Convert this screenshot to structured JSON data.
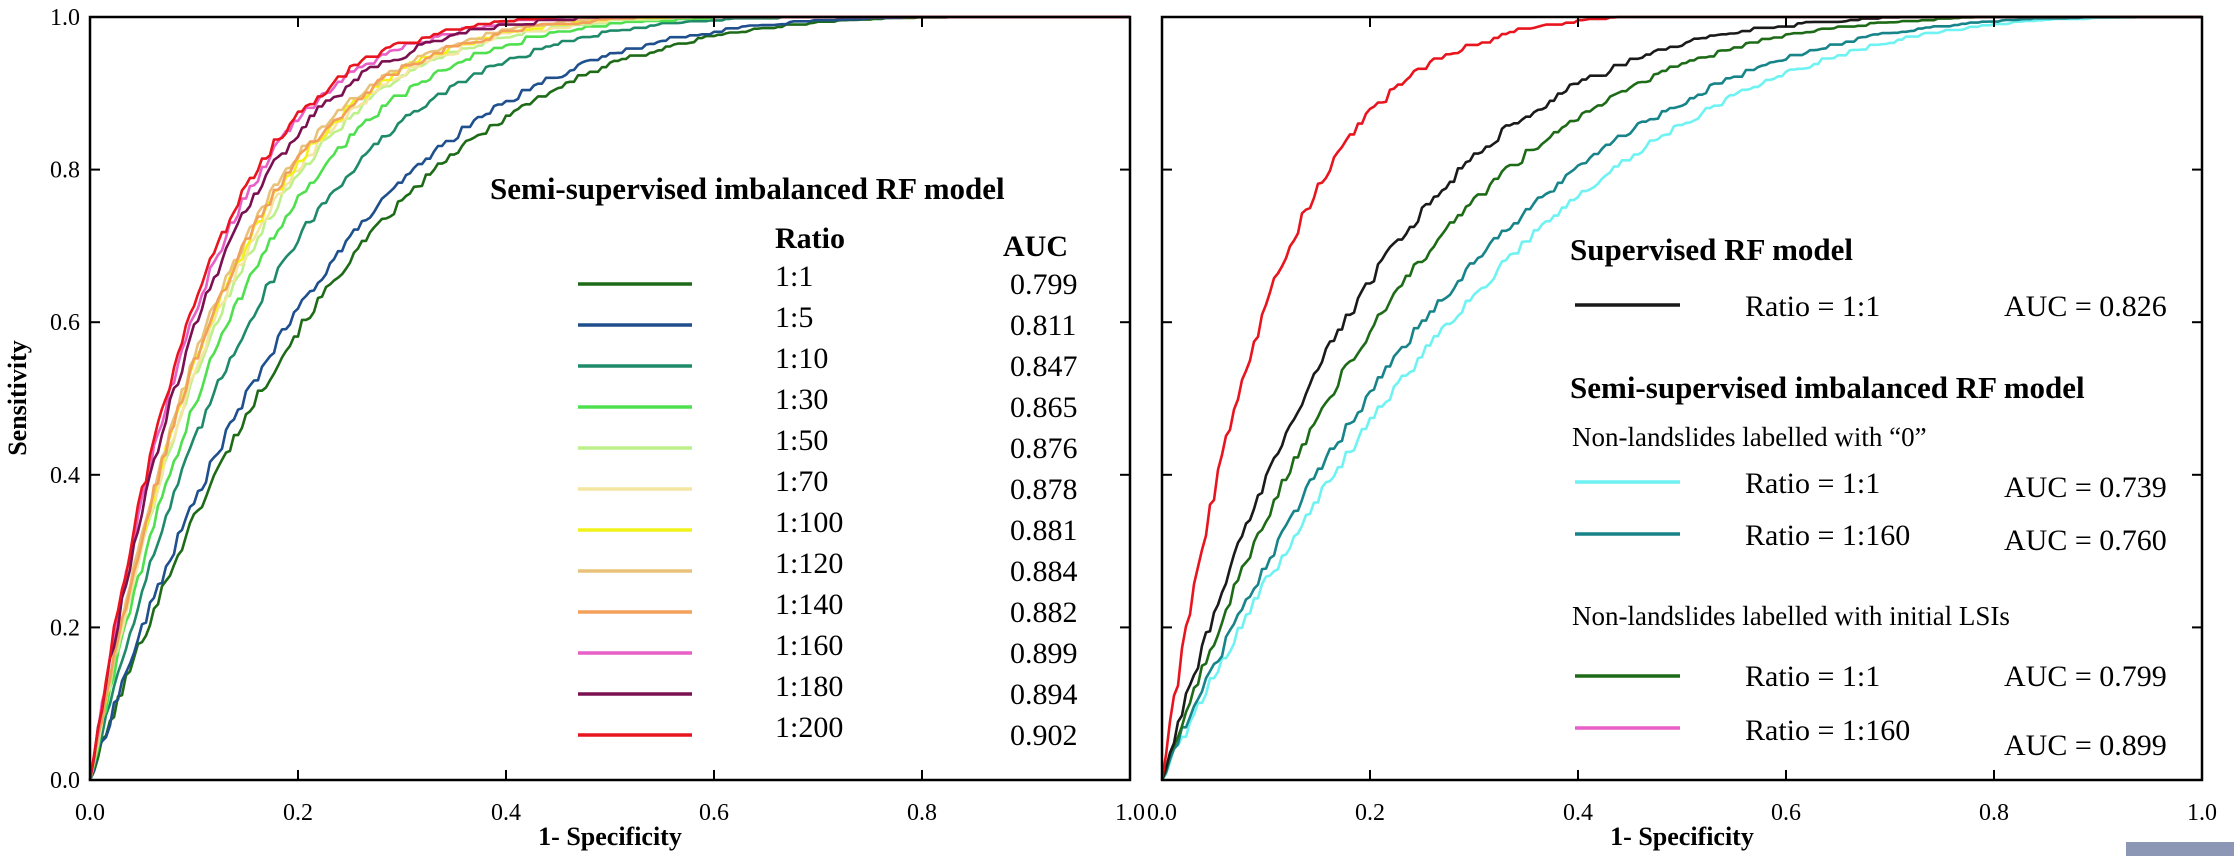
{
  "chart_data": [
    {
      "type": "line",
      "title": "",
      "xlabel": "1- Specificity",
      "ylabel": "Sensitivity",
      "xlim": [
        0,
        1
      ],
      "ylim": [
        0,
        1
      ],
      "xticks": [
        "0.0",
        "0.2",
        "0.4",
        "0.6",
        "0.8",
        "1.0"
      ],
      "yticks": [
        "0.0",
        "0.2",
        "0.4",
        "0.6",
        "0.8",
        "1.0"
      ],
      "grid": false,
      "legend_position": "center-right",
      "legend": {
        "heading": "Semi-supervised imbalanced RF model",
        "col_ratio": "Ratio",
        "col_auc": "AUC"
      },
      "series": [
        {
          "label": "1:1",
          "auc": "0.799",
          "color": "#1e6b17"
        },
        {
          "label": "1:5",
          "auc": "0.811",
          "color": "#1f4f8c"
        },
        {
          "label": "1:10",
          "auc": "0.847",
          "color": "#1f8a6a"
        },
        {
          "label": "1:30",
          "auc": "0.865",
          "color": "#4fe04f"
        },
        {
          "label": "1:50",
          "auc": "0.876",
          "color": "#bdf08a"
        },
        {
          "label": "1:70",
          "auc": "0.878",
          "color": "#f4e6a0"
        },
        {
          "label": "1:100",
          "auc": "0.881",
          "color": "#f2f21a"
        },
        {
          "label": "1:120",
          "auc": "0.884",
          "color": "#e8c27a"
        },
        {
          "label": "1:140",
          "auc": "0.882",
          "color": "#f2a05a"
        },
        {
          "label": "1:160",
          "auc": "0.899",
          "color": "#e95fc8"
        },
        {
          "label": "1:180",
          "auc": "0.894",
          "color": "#7a1050"
        },
        {
          "label": "1:200",
          "auc": "0.902",
          "color": "#e8141e"
        }
      ]
    },
    {
      "type": "line",
      "title": "",
      "xlabel": "1- Specificity",
      "ylabel": "",
      "xlim": [
        0,
        1
      ],
      "ylim": [
        0,
        1
      ],
      "xticks": [
        "0.0",
        "0.2",
        "0.4",
        "0.6",
        "0.8",
        "1.0"
      ],
      "grid": false,
      "legend_position": "right",
      "legend": {
        "heading1": "Supervised RF model",
        "heading2": "Semi-supervised imbalanced RF model",
        "sub1": "Non-landslides labelled with “0”",
        "sub2": "Non-landslides labelled with initial LSIs"
      },
      "series": [
        {
          "group": "supervised",
          "label": "Ratio = 1:1",
          "auc": "AUC = 0.826",
          "color": "#1a1a1a"
        },
        {
          "group": "zero",
          "label": "Ratio = 1:1",
          "auc": "AUC = 0.739",
          "color": "#6ff2f2"
        },
        {
          "group": "zero",
          "label": "Ratio = 1:160",
          "auc": "AUC = 0.760",
          "color": "#17848a"
        },
        {
          "group": "lsi",
          "label": "Ratio = 1:1",
          "auc": "AUC = 0.799",
          "color": "#1e6b17"
        },
        {
          "group": "lsi",
          "label": "Ratio = 1:160",
          "auc": "AUC = 0.899",
          "color": "#e95fc8"
        },
        {
          "group": "red",
          "label": "",
          "auc": "",
          "color": "#e8141e"
        }
      ]
    }
  ]
}
